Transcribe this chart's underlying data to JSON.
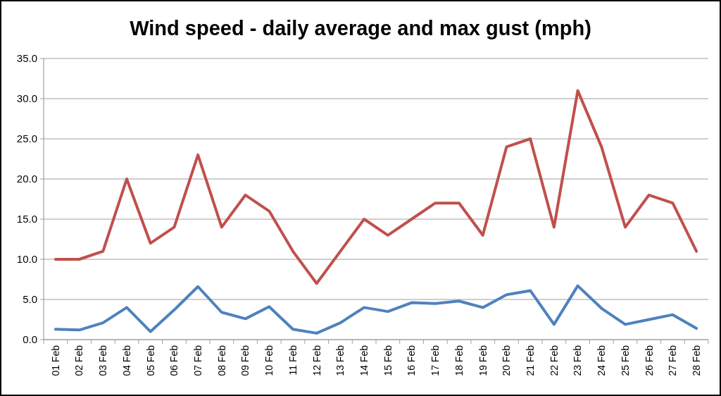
{
  "chart_data": {
    "type": "line",
    "title": "Wind speed - daily average and max gust (mph)",
    "categories": [
      "01 Feb",
      "02 Feb",
      "03 Feb",
      "04 Feb",
      "05 Feb",
      "06 Feb",
      "07 Feb",
      "08 Feb",
      "09 Feb",
      "10 Feb",
      "11 Feb",
      "12 Feb",
      "13 Feb",
      "14 Feb",
      "15 Feb",
      "16 Feb",
      "17 Feb",
      "18 Feb",
      "19 Feb",
      "20 Feb",
      "21 Feb",
      "22 Feb",
      "23 Feb",
      "24 Feb",
      "25 Feb",
      "26 Feb",
      "27 Feb",
      "28 Feb"
    ],
    "series": [
      {
        "color": "#c0504d",
        "values": [
          10,
          10,
          11,
          20,
          12,
          14,
          23,
          14,
          18,
          16,
          11,
          7,
          11,
          15,
          13,
          15,
          17,
          17,
          13,
          24,
          25,
          14,
          31,
          24,
          14,
          18,
          17,
          11
        ]
      },
      {
        "color": "#4f81bd",
        "values": [
          1.3,
          1.2,
          2.1,
          4.0,
          1.0,
          3.7,
          6.6,
          3.4,
          2.6,
          4.1,
          1.3,
          0.8,
          2.1,
          4.0,
          3.5,
          4.6,
          4.5,
          4.8,
          4.0,
          5.6,
          6.1,
          1.9,
          6.7,
          3.9,
          1.9,
          2.5,
          3.1,
          1.4
        ]
      }
    ],
    "ylim": [
      0,
      35
    ],
    "yticks": [
      {
        "value": 0,
        "label": "0.0"
      },
      {
        "value": 5,
        "label": "5.0"
      },
      {
        "value": 10,
        "label": "10.0"
      },
      {
        "value": 15,
        "label": "15.0"
      },
      {
        "value": 20,
        "label": "20.0"
      },
      {
        "value": 25,
        "label": "25.0"
      },
      {
        "value": 30,
        "label": "30.0"
      },
      {
        "value": 35,
        "label": "35.0"
      }
    ],
    "grid": "y",
    "marker": "none",
    "line_style": "solid"
  }
}
